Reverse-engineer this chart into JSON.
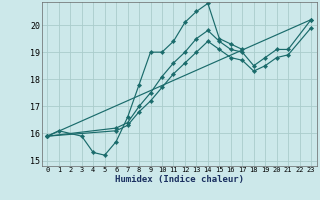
{
  "xlabel": "Humidex (Indice chaleur)",
  "bg_color": "#cce8ea",
  "grid_color": "#aacccc",
  "line_color": "#1a6b6b",
  "xlim": [
    -0.5,
    23.5
  ],
  "ylim": [
    14.8,
    20.85
  ],
  "yticks": [
    15,
    16,
    17,
    18,
    19,
    20
  ],
  "xticks": [
    0,
    1,
    2,
    3,
    4,
    5,
    6,
    7,
    8,
    9,
    10,
    11,
    12,
    13,
    14,
    15,
    16,
    17,
    18,
    19,
    20,
    21,
    22,
    23
  ],
  "series": [
    {
      "x": [
        0,
        1,
        3,
        4,
        5,
        6,
        7,
        8,
        9,
        10,
        11,
        12,
        13,
        14,
        15,
        16,
        17
      ],
      "y": [
        15.9,
        16.1,
        15.9,
        15.3,
        15.2,
        15.7,
        16.6,
        17.8,
        19.0,
        19.0,
        19.4,
        20.1,
        20.5,
        20.8,
        19.5,
        19.3,
        19.1
      ]
    },
    {
      "x": [
        0,
        6,
        7,
        8,
        9,
        10,
        11,
        12,
        13,
        14,
        15,
        16,
        17,
        18,
        19,
        20,
        21,
        23
      ],
      "y": [
        15.9,
        16.2,
        16.4,
        17.0,
        17.5,
        18.1,
        18.6,
        19.0,
        19.5,
        19.8,
        19.4,
        19.1,
        19.0,
        18.5,
        18.8,
        19.1,
        19.1,
        20.2
      ]
    },
    {
      "x": [
        0,
        6,
        7,
        8,
        9,
        10,
        11,
        12,
        13,
        14,
        15,
        16,
        17,
        18,
        19,
        20,
        21,
        23
      ],
      "y": [
        15.9,
        16.1,
        16.3,
        16.8,
        17.2,
        17.7,
        18.2,
        18.6,
        19.0,
        19.4,
        19.1,
        18.8,
        18.7,
        18.3,
        18.5,
        18.8,
        18.9,
        19.9
      ]
    },
    {
      "x": [
        0,
        23
      ],
      "y": [
        15.9,
        20.2
      ]
    }
  ]
}
